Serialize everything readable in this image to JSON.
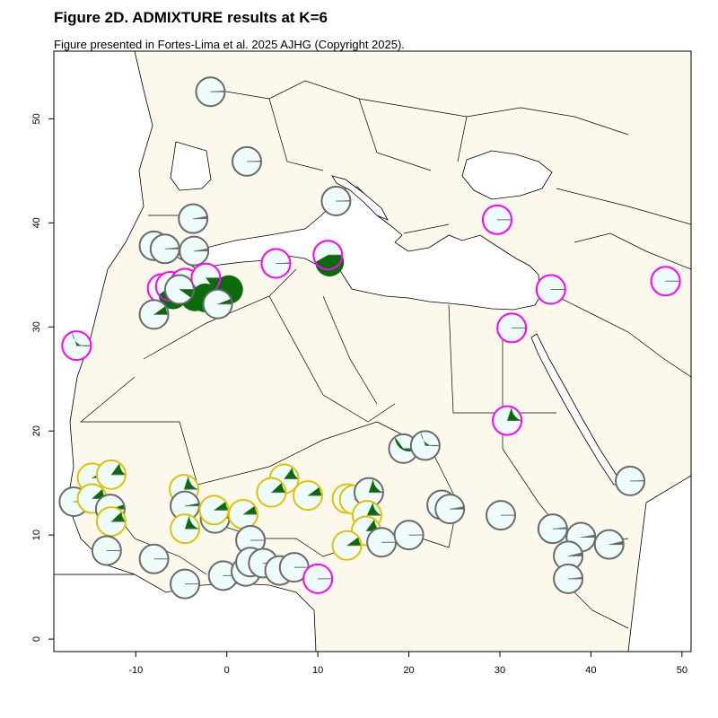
{
  "title": "Figure 2D. ADMIXTURE results at K=6",
  "subtitle": "Figure presented in Fortes-Lima et al. 2025 AJHG (Copyright 2025).",
  "chart_data": {
    "type": "map-pie",
    "xlim": [
      -19,
      51
    ],
    "ylim": [
      -1.2,
      56.5
    ],
    "x_ticks": [
      -10,
      0,
      10,
      20,
      30,
      40,
      50
    ],
    "y_ticks": [
      0,
      10,
      20,
      30,
      40,
      50
    ],
    "colors": {
      "land": "#fdf8ec",
      "sea": "#ffffff",
      "border": "#000000",
      "base_fill": "#eefbfb",
      "slice_green": "#0b6b0b",
      "slice_grey": "#6b6b6b",
      "outline_grey": "#6b6b6b",
      "outline_magenta": "#ff00ff",
      "outline_yellow": "#e2c200"
    },
    "pies": [
      {
        "lon": -1.8,
        "lat": 52.6,
        "outline": "grey",
        "green": 0.0,
        "grey": 0.015
      },
      {
        "lon": 2.2,
        "lat": 45.9,
        "outline": "grey",
        "green": 0.0,
        "grey": 0.01
      },
      {
        "lon": 12.0,
        "lat": 42.1,
        "outline": "grey",
        "green": 0.0,
        "grey": 0.01
      },
      {
        "lon": -3.7,
        "lat": 40.4,
        "outline": "grey",
        "green": 0.0,
        "grey": 0.03
      },
      {
        "lon": -8.0,
        "lat": 37.8,
        "outline": "grey",
        "green": 0.0,
        "grey": 0.02
      },
      {
        "lon": -6.8,
        "lat": 37.5,
        "outline": "grey",
        "green": 0.0,
        "grey": 0.02
      },
      {
        "lon": -3.6,
        "lat": 37.3,
        "outline": "grey",
        "green": 0.0,
        "grey": 0.03
      },
      {
        "lon": 29.7,
        "lat": 40.3,
        "outline": "magenta",
        "green": 0.0,
        "grey": 0.0
      },
      {
        "lon": 5.4,
        "lat": 36.1,
        "outline": "magenta",
        "green": 0.01,
        "grey": 0.0
      },
      {
        "lon": 11.1,
        "lat": 36.9,
        "outline": "magenta",
        "green": 0.58,
        "grey": 0.0
      },
      {
        "lon": -7.1,
        "lat": 33.7,
        "outline": "magenta",
        "green": 0.12,
        "grey": 0.0
      },
      {
        "lon": -6.2,
        "lat": 33.9,
        "outline": "magenta",
        "green": 0.6,
        "grey": 0.0
      },
      {
        "lon": -4.6,
        "lat": 34.2,
        "outline": "magenta",
        "green": 0.7,
        "grey": 0.0
      },
      {
        "lon": -2.3,
        "lat": 34.7,
        "outline": "magenta",
        "green": 0.85,
        "grey": 0.0
      },
      {
        "lon": -5.2,
        "lat": 33.6,
        "outline": "grey",
        "green": 0.9,
        "grey": 0.0
      },
      {
        "lon": -1.0,
        "lat": 32.2,
        "outline": "grey",
        "green": 0.06,
        "grey": 0.0
      },
      {
        "lon": -8.0,
        "lat": 31.2,
        "outline": "grey",
        "green": 0.1,
        "grey": 0.0
      },
      {
        "lon": -16.5,
        "lat": 28.2,
        "outline": "magenta",
        "green": 0.3,
        "grey": 0.0
      },
      {
        "lon": 35.6,
        "lat": 33.6,
        "outline": "magenta",
        "green": 0.0,
        "grey": 0.0
      },
      {
        "lon": 48.2,
        "lat": 34.4,
        "outline": "magenta",
        "green": 0.0,
        "grey": 0.0
      },
      {
        "lon": 31.3,
        "lat": 29.9,
        "outline": "magenta",
        "green": 0.0,
        "grey": 0.0
      },
      {
        "lon": 30.8,
        "lat": 21.0,
        "outline": "magenta",
        "green": 0.2,
        "grey": 0.0
      },
      {
        "lon": 19.4,
        "lat": 18.3,
        "outline": "grey",
        "green": 0.35,
        "grey": 0.0
      },
      {
        "lon": 21.8,
        "lat": 18.6,
        "outline": "grey",
        "green": 0.3,
        "grey": 0.0
      },
      {
        "lon": 44.3,
        "lat": 15.2,
        "outline": "grey",
        "green": 0.0,
        "grey": 0.01
      },
      {
        "lon": -16.8,
        "lat": 13.2,
        "outline": "grey",
        "green": 0.0,
        "grey": 0.0
      },
      {
        "lon": -14.8,
        "lat": 15.5,
        "outline": "yellow",
        "green": 0.08,
        "grey": 0.0
      },
      {
        "lon": -12.7,
        "lat": 15.8,
        "outline": "yellow",
        "green": 0.15,
        "grey": 0.0
      },
      {
        "lon": -14.8,
        "lat": 13.5,
        "outline": "yellow",
        "green": 0.12,
        "grey": 0.0
      },
      {
        "lon": -12.8,
        "lat": 12.5,
        "outline": "grey",
        "green": 0.05,
        "grey": 0.0
      },
      {
        "lon": -12.7,
        "lat": 11.3,
        "outline": "yellow",
        "green": 0.12,
        "grey": 0.0
      },
      {
        "lon": -13.2,
        "lat": 8.5,
        "outline": "grey",
        "green": 0.0,
        "grey": 0.0
      },
      {
        "lon": -8.0,
        "lat": 7.7,
        "outline": "grey",
        "green": 0.0,
        "grey": 0.0
      },
      {
        "lon": -4.7,
        "lat": 14.4,
        "outline": "yellow",
        "green": 0.2,
        "grey": 0.0
      },
      {
        "lon": -4.6,
        "lat": 12.8,
        "outline": "grey",
        "green": 0.03,
        "grey": 0.0
      },
      {
        "lon": -4.6,
        "lat": 10.6,
        "outline": "yellow",
        "green": 0.2,
        "grey": 0.0
      },
      {
        "lon": -1.3,
        "lat": 11.6,
        "outline": "grey",
        "green": 0.05,
        "grey": 0.0
      },
      {
        "lon": -1.4,
        "lat": 12.4,
        "outline": "yellow",
        "green": 0.1,
        "grey": 0.0
      },
      {
        "lon": 1.8,
        "lat": 12.0,
        "outline": "yellow",
        "green": 0.1,
        "grey": 0.0
      },
      {
        "lon": 2.6,
        "lat": 9.5,
        "outline": "grey",
        "green": 0.0,
        "grey": 0.0
      },
      {
        "lon": -4.6,
        "lat": 5.3,
        "outline": "grey",
        "green": 0.0,
        "grey": 0.0
      },
      {
        "lon": -0.4,
        "lat": 6.1,
        "outline": "grey",
        "green": 0.0,
        "grey": 0.0
      },
      {
        "lon": 2.1,
        "lat": 6.5,
        "outline": "grey",
        "green": 0.0,
        "grey": 0.0
      },
      {
        "lon": 2.6,
        "lat": 7.4,
        "outline": "grey",
        "green": 0.0,
        "grey": 0.0
      },
      {
        "lon": 4.0,
        "lat": 7.3,
        "outline": "grey",
        "green": 0.0,
        "grey": 0.0
      },
      {
        "lon": 5.8,
        "lat": 6.6,
        "outline": "grey",
        "green": 0.0,
        "grey": 0.0
      },
      {
        "lon": 7.4,
        "lat": 6.9,
        "outline": "grey",
        "green": 0.0,
        "grey": 0.0
      },
      {
        "lon": 6.3,
        "lat": 15.4,
        "outline": "yellow",
        "green": 0.15,
        "grey": 0.0
      },
      {
        "lon": 4.9,
        "lat": 14.1,
        "outline": "yellow",
        "green": 0.12,
        "grey": 0.0
      },
      {
        "lon": 8.9,
        "lat": 13.8,
        "outline": "yellow",
        "green": 0.1,
        "grey": 0.0
      },
      {
        "lon": 10.0,
        "lat": 5.8,
        "outline": "magenta",
        "green": 0.0,
        "grey": 0.0
      },
      {
        "lon": 13.2,
        "lat": 13.5,
        "outline": "yellow",
        "green": 0.12,
        "grey": 0.0
      },
      {
        "lon": 14.0,
        "lat": 13.4,
        "outline": "yellow",
        "green": 0.1,
        "grey": 0.0
      },
      {
        "lon": 15.6,
        "lat": 14.1,
        "outline": "grey",
        "green": 0.2,
        "grey": 0.0
      },
      {
        "lon": 15.4,
        "lat": 11.9,
        "outline": "yellow",
        "green": 0.18,
        "grey": 0.0
      },
      {
        "lon": 15.3,
        "lat": 10.4,
        "outline": "yellow",
        "green": 0.15,
        "grey": 0.0
      },
      {
        "lon": 13.2,
        "lat": 9.0,
        "outline": "yellow",
        "green": 0.1,
        "grey": 0.0
      },
      {
        "lon": 17.0,
        "lat": 9.3,
        "outline": "grey",
        "green": 0.0,
        "grey": 0.0
      },
      {
        "lon": 20.0,
        "lat": 10.0,
        "outline": "grey",
        "green": 0.0,
        "grey": 0.0
      },
      {
        "lon": 23.6,
        "lat": 12.9,
        "outline": "grey",
        "green": 0.12,
        "grey": 0.0
      },
      {
        "lon": 24.5,
        "lat": 12.5,
        "outline": "grey",
        "green": 0.0,
        "grey": 0.03
      },
      {
        "lon": 30.1,
        "lat": 11.9,
        "outline": "grey",
        "green": 0.0,
        "grey": 0.0
      },
      {
        "lon": 35.8,
        "lat": 10.6,
        "outline": "grey",
        "green": 0.0,
        "grey": 0.02
      },
      {
        "lon": 38.9,
        "lat": 9.8,
        "outline": "grey",
        "green": 0.0,
        "grey": 0.03
      },
      {
        "lon": 42.0,
        "lat": 9.1,
        "outline": "grey",
        "green": 0.0,
        "grey": 0.04
      },
      {
        "lon": 37.5,
        "lat": 8.0,
        "outline": "grey",
        "green": 0.0,
        "grey": 0.04
      },
      {
        "lon": 37.5,
        "lat": 5.8,
        "outline": "grey",
        "green": 0.0,
        "grey": 0.02
      }
    ]
  }
}
